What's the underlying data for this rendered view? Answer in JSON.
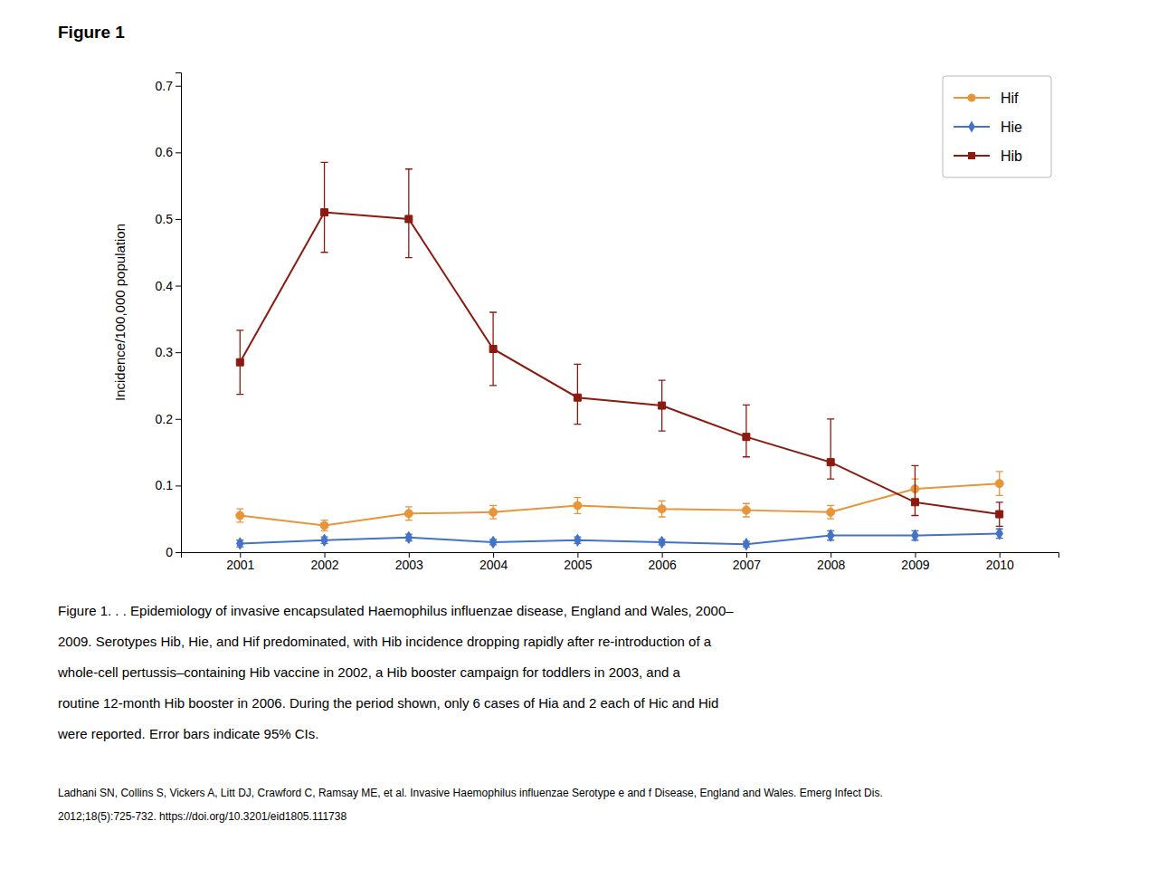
{
  "chart_data": {
    "type": "line",
    "title": "Figure 1",
    "ylabel": "Incidence/100,000 population",
    "x": [
      2001,
      2002,
      2003,
      2004,
      2005,
      2006,
      2007,
      2008,
      2009,
      2010
    ],
    "xlim": [
      2000.3,
      2010.7
    ],
    "xticks": [
      2001,
      2002,
      2003,
      2004,
      2005,
      2006,
      2007,
      2008,
      2009,
      2010
    ],
    "ylim": [
      0,
      0.72
    ],
    "yticks": [
      0,
      0.1,
      0.2,
      0.3,
      0.4,
      0.5,
      0.6,
      0.7
    ],
    "grid": false,
    "legend": "upper right",
    "series": [
      {
        "name": "Hif",
        "color": "#E8953A",
        "marker": "circle",
        "values": [
          0.055,
          0.04,
          0.058,
          0.06,
          0.07,
          0.065,
          0.063,
          0.06,
          0.095,
          0.103
        ],
        "error_low": [
          0.01,
          0.008,
          0.01,
          0.01,
          0.012,
          0.012,
          0.01,
          0.01,
          0.015,
          0.018
        ],
        "error_high": [
          0.01,
          0.008,
          0.01,
          0.01,
          0.012,
          0.012,
          0.01,
          0.01,
          0.015,
          0.018
        ]
      },
      {
        "name": "Hie",
        "color": "#4472C4",
        "marker": "diamond",
        "values": [
          0.013,
          0.018,
          0.022,
          0.015,
          0.018,
          0.015,
          0.012,
          0.025,
          0.025,
          0.028
        ],
        "error_low": [
          0.005,
          0.005,
          0.005,
          0.004,
          0.005,
          0.004,
          0.004,
          0.007,
          0.007,
          0.007
        ],
        "error_high": [
          0.005,
          0.005,
          0.005,
          0.004,
          0.005,
          0.004,
          0.004,
          0.007,
          0.007,
          0.007
        ]
      },
      {
        "name": "Hib",
        "color": "#8B1A10",
        "marker": "square",
        "values": [
          0.285,
          0.51,
          0.5,
          0.305,
          0.232,
          0.22,
          0.173,
          0.135,
          0.075,
          0.057
        ],
        "error_low": [
          0.048,
          0.06,
          0.058,
          0.055,
          0.04,
          0.038,
          0.03,
          0.025,
          0.02,
          0.018
        ],
        "error_high": [
          0.048,
          0.075,
          0.075,
          0.055,
          0.05,
          0.038,
          0.048,
          0.065,
          0.055,
          0.018
        ]
      }
    ],
    "caption": [
      "Figure 1. . . Epidemiology of invasive encapsulated Haemophilus influenzae disease, England and Wales, 2000–",
      "2009. Serotypes Hib, Hie, and Hif predominated, with Hib incidence dropping rapidly after re-introduction of a",
      "whole-cell pertussis–containing Hib vaccine in 2002, a Hib booster campaign for toddlers in 2003, and a",
      "routine 12-month Hib booster in 2006. During the period shown, only 6 cases of Hia and 2 each of Hic and Hid",
      "were reported. Error bars indicate 95% CIs."
    ],
    "citation": [
      "Ladhani SN, Collins S, Vickers A, Litt DJ, Crawford C, Ramsay ME, et al. Invasive Haemophilus influenzae Serotype e and f Disease, England and Wales. Emerg Infect Dis.",
      "2012;18(5):725-732. https://doi.org/10.3201/eid1805.111738"
    ]
  }
}
